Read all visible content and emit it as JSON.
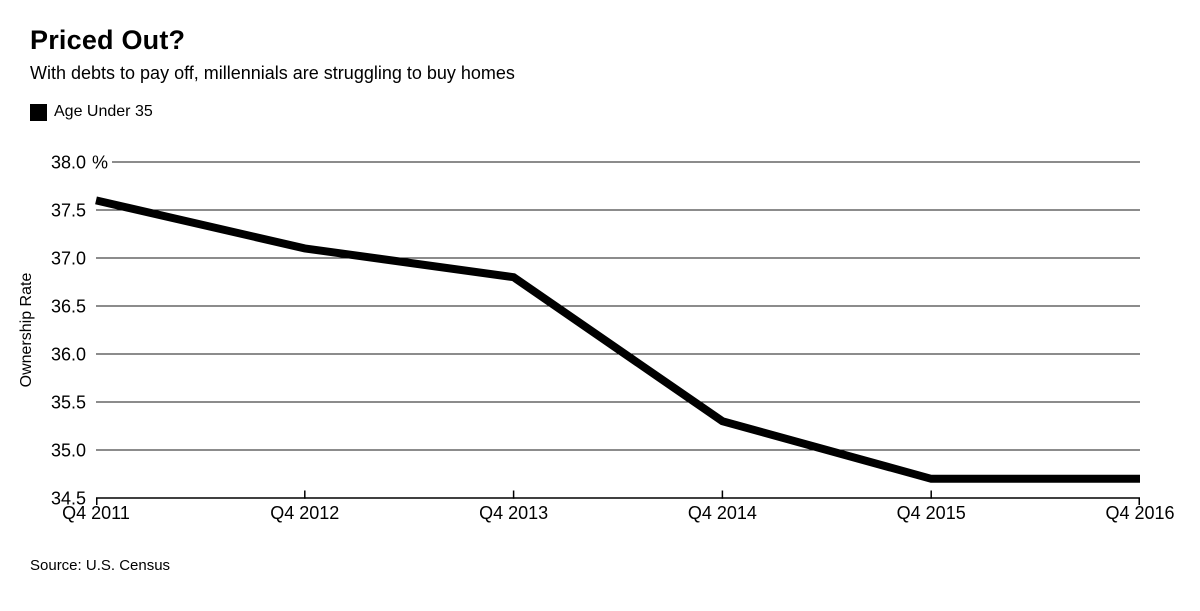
{
  "page": {
    "background": "#ffffff"
  },
  "chart_data": {
    "type": "line",
    "title": "Priced Out?",
    "subtitle": "With debts to pay off, millennials are struggling to buy homes",
    "categories": [
      "Q4 2011",
      "Q4 2012",
      "Q4 2013",
      "Q4 2014",
      "Q4 2015",
      "Q4 2016"
    ],
    "series": [
      {
        "name": "Age Under 35",
        "color": "#000000",
        "values": [
          37.6,
          37.1,
          36.8,
          35.3,
          34.7,
          34.7
        ]
      }
    ],
    "xlabel": "",
    "ylabel": "Ownership Rate",
    "y_unit": "%",
    "ylim": [
      34.5,
      38.0
    ],
    "yticks": [
      38.0,
      37.5,
      37.0,
      36.5,
      36.0,
      35.5,
      35.0,
      34.5
    ],
    "ytick_labels": [
      "38.0",
      "37.5",
      "37.0",
      "36.5",
      "36.0",
      "35.5",
      "35.0",
      "34.5"
    ],
    "grid": "horizontal",
    "legend_position": "top-left",
    "source": "Source: U.S. Census"
  },
  "colors": {
    "line": "#000000",
    "grid": "#1a1a1a",
    "axis": "#000000",
    "text": "#000000",
    "background": "#ffffff"
  }
}
